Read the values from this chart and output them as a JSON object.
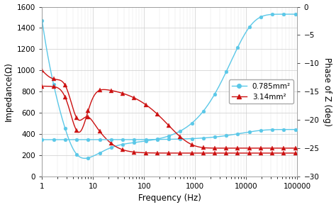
{
  "xlabel": "Frequency (Hz)",
  "ylabel_left": "Impedance(Ω)",
  "ylabel_right": "Phase of Z (deg)",
  "ylim_left": [
    0,
    1600
  ],
  "ylim_right": [
    -30,
    0
  ],
  "left_yticks": [
    0,
    200,
    400,
    600,
    800,
    1000,
    1200,
    1400,
    1600
  ],
  "right_yticks": [
    0,
    -5,
    -10,
    -15,
    -20,
    -25,
    -30
  ],
  "legend": [
    "0.785mm²",
    "3.14mm²"
  ],
  "color_cyan": "#5BC8E8",
  "color_red": "#CC1111",
  "bg_color": "#FFFFFF",
  "grid_color": "#CCCCCC",
  "xtick_labels": [
    "1",
    "10",
    "100",
    "1000",
    "10000",
    "100000"
  ],
  "xtick_vals": [
    1,
    10,
    100,
    1000,
    10000,
    100000
  ]
}
